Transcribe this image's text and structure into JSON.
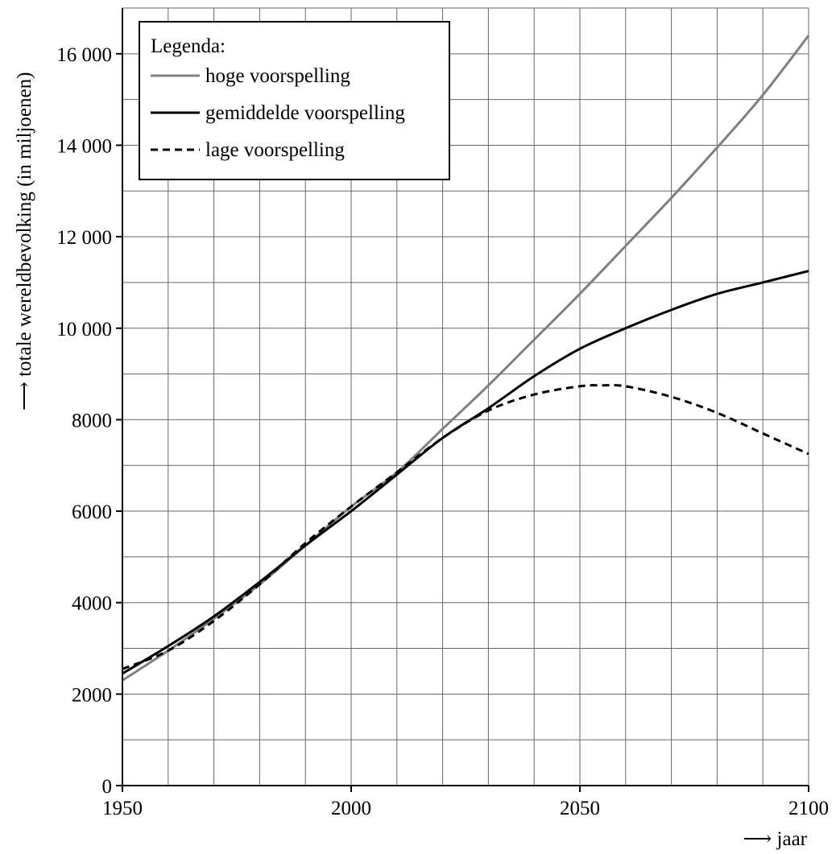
{
  "chart_data": {
    "type": "line",
    "title": "",
    "xlabel": "jaar",
    "ylabel": "totale wereldbevolking (in miljoenen)",
    "xlim": [
      1950,
      2100
    ],
    "ylim": [
      0,
      17000
    ],
    "x_ticks": [
      {
        "value": 1950,
        "label": "1950"
      },
      {
        "value": 2000,
        "label": "2000"
      },
      {
        "value": 2050,
        "label": "2050"
      },
      {
        "value": 2100,
        "label": "2100"
      }
    ],
    "y_ticks": [
      {
        "value": 0,
        "label": "0"
      },
      {
        "value": 2000,
        "label": "2000"
      },
      {
        "value": 4000,
        "label": "4000"
      },
      {
        "value": 6000,
        "label": "6000"
      },
      {
        "value": 8000,
        "label": "8000"
      },
      {
        "value": 10000,
        "label": "10 000"
      },
      {
        "value": 12000,
        "label": "12 000"
      },
      {
        "value": 14000,
        "label": "14 000"
      },
      {
        "value": 16000,
        "label": "16 000"
      }
    ],
    "x_grid_step": 10,
    "y_grid_step": 1000,
    "grid": true,
    "legend": {
      "title": "Legenda:",
      "position": "top-left"
    },
    "series": [
      {
        "name": "hoge voorspelling",
        "color": "#808080",
        "dash": "solid",
        "x": [
          1950,
          1960,
          1970,
          1980,
          1990,
          2000,
          2010,
          2020,
          2030,
          2040,
          2050,
          2060,
          2070,
          2080,
          2090,
          2100
        ],
        "values": [
          2300,
          2950,
          3650,
          4400,
          5250,
          6100,
          6850,
          7800,
          8750,
          9750,
          10750,
          11800,
          12850,
          13950,
          15100,
          16400
        ]
      },
      {
        "name": "gemiddelde voorspelling",
        "color": "#000000",
        "dash": "solid",
        "x": [
          1950,
          1960,
          1970,
          1980,
          1990,
          2000,
          2010,
          2020,
          2030,
          2040,
          2050,
          2060,
          2070,
          2080,
          2090,
          2100
        ],
        "values": [
          2450,
          3050,
          3700,
          4450,
          5250,
          6000,
          6800,
          7600,
          8250,
          8950,
          9550,
          10000,
          10400,
          10750,
          11000,
          11250
        ]
      },
      {
        "name": "lage voorspelling",
        "color": "#000000",
        "dash": "dashed",
        "x": [
          1950,
          1960,
          1970,
          1980,
          1990,
          2000,
          2010,
          2020,
          2030,
          2040,
          2050,
          2055,
          2060,
          2070,
          2080,
          2090,
          2100
        ],
        "values": [
          2550,
          2950,
          3600,
          4400,
          5300,
          6100,
          6850,
          7600,
          8200,
          8550,
          8730,
          8750,
          8730,
          8500,
          8150,
          7700,
          7250
        ]
      }
    ]
  }
}
